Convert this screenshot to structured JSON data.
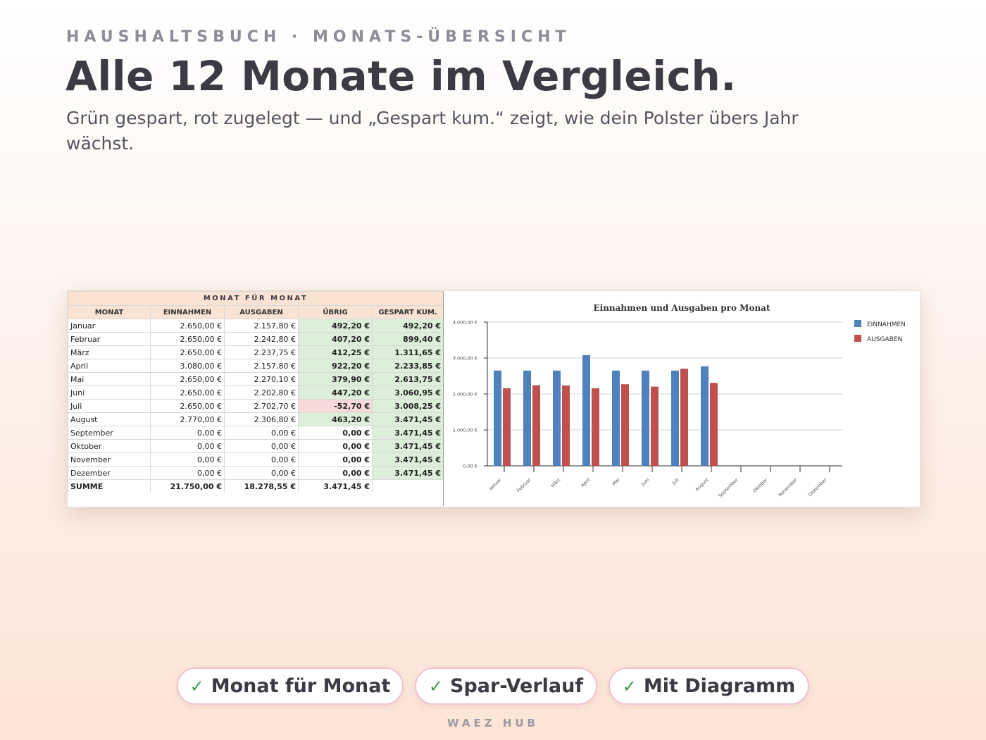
{
  "header": {
    "eyebrow": "HAUSHALTSBUCH · MONATS-ÜBERSICHT",
    "title": "Alle 12 Monate im Vergleich.",
    "subtitle": "Grün gespart, rot zugelegt — und „Gespart kum.“ zeigt, wie dein Polster übers Jahr wächst."
  },
  "table": {
    "band": "MONAT FÜR MONAT",
    "columns": [
      "MONAT",
      "EINNAHMEN",
      "AUSGABEN",
      "ÜBRIG",
      "GESPART KUM."
    ],
    "rows": [
      {
        "monat": "Januar",
        "einnahmen": "2.650,00 €",
        "ausgaben": "2.157,80 €",
        "uebrig": "492,20 €",
        "kum": "492,20 €",
        "negativ": false
      },
      {
        "monat": "Februar",
        "einnahmen": "2.650,00 €",
        "ausgaben": "2.242,80 €",
        "uebrig": "407,20 €",
        "kum": "899,40 €",
        "negativ": false
      },
      {
        "monat": "März",
        "einnahmen": "2.650,00 €",
        "ausgaben": "2.237,75 €",
        "uebrig": "412,25 €",
        "kum": "1.311,65 €",
        "negativ": false
      },
      {
        "monat": "April",
        "einnahmen": "3.080,00 €",
        "ausgaben": "2.157,80 €",
        "uebrig": "922,20 €",
        "kum": "2.233,85 €",
        "negativ": false
      },
      {
        "monat": "Mai",
        "einnahmen": "2.650,00 €",
        "ausgaben": "2.270,10 €",
        "uebrig": "379,90 €",
        "kum": "2.613,75 €",
        "negativ": false
      },
      {
        "monat": "Juni",
        "einnahmen": "2.650,00 €",
        "ausgaben": "2.202,80 €",
        "uebrig": "447,20 €",
        "kum": "3.060,95 €",
        "negativ": false
      },
      {
        "monat": "Juli",
        "einnahmen": "2.650,00 €",
        "ausgaben": "2.702,70 €",
        "uebrig": "-52,70 €",
        "kum": "3.008,25 €",
        "negativ": true
      },
      {
        "monat": "August",
        "einnahmen": "2.770,00 €",
        "ausgaben": "2.306,80 €",
        "uebrig": "463,20 €",
        "kum": "3.471,45 €",
        "negativ": false
      },
      {
        "monat": "September",
        "einnahmen": "0,00 €",
        "ausgaben": "0,00 €",
        "uebrig": "0,00 €",
        "kum": "3.471,45 €",
        "negativ": false,
        "leer": true
      },
      {
        "monat": "Oktober",
        "einnahmen": "0,00 €",
        "ausgaben": "0,00 €",
        "uebrig": "0,00 €",
        "kum": "3.471,45 €",
        "negativ": false,
        "leer": true
      },
      {
        "monat": "November",
        "einnahmen": "0,00 €",
        "ausgaben": "0,00 €",
        "uebrig": "0,00 €",
        "kum": "3.471,45 €",
        "negativ": false,
        "leer": true
      },
      {
        "monat": "Dezember",
        "einnahmen": "0,00 €",
        "ausgaben": "0,00 €",
        "uebrig": "0,00 €",
        "kum": "3.471,45 €",
        "negativ": false,
        "leer": true
      }
    ],
    "summe": {
      "label": "SUMME",
      "einnahmen": "21.750,00 €",
      "ausgaben": "18.278,55 €",
      "uebrig": "3.471,45 €"
    }
  },
  "chart_data": {
    "type": "bar",
    "title": "Einnahmen und Ausgaben pro Monat",
    "categories": [
      "Januar",
      "Februar",
      "März",
      "April",
      "Mai",
      "Juni",
      "Juli",
      "August",
      "September",
      "Oktober",
      "November",
      "Dezember"
    ],
    "series": [
      {
        "name": "EINNAHMEN",
        "color": "#4f81bd",
        "values": [
          2650,
          2650,
          2650,
          3080,
          2650,
          2650,
          2650,
          2770,
          0,
          0,
          0,
          0
        ]
      },
      {
        "name": "AUSGABEN",
        "color": "#c0504d",
        "values": [
          2157.8,
          2242.8,
          2237.75,
          2157.8,
          2270.1,
          2202.8,
          2702.7,
          2306.8,
          0,
          0,
          0,
          0
        ]
      }
    ],
    "ylim": [
      0,
      4000
    ],
    "yticks": [
      0,
      1000,
      2000,
      3000,
      4000
    ],
    "ytick_labels": [
      "0,00 €",
      "1.000,00 €",
      "2.000,00 €",
      "3.000,00 €",
      "4.000,00 €"
    ],
    "grid": true,
    "legend": "right",
    "xlabel": "",
    "ylabel": ""
  },
  "badges": [
    {
      "check": "✓",
      "label": "Monat für Monat"
    },
    {
      "check": "✓",
      "label": "Spar-Verlauf"
    },
    {
      "check": "✓",
      "label": "Mit Diagramm"
    }
  ],
  "footer": "WAEZ HUB",
  "colors": {
    "positive": "#dcefd9",
    "negative": "#f7d9d9",
    "header": "#fbe3d3",
    "chip_border": "#f2c1d3"
  }
}
